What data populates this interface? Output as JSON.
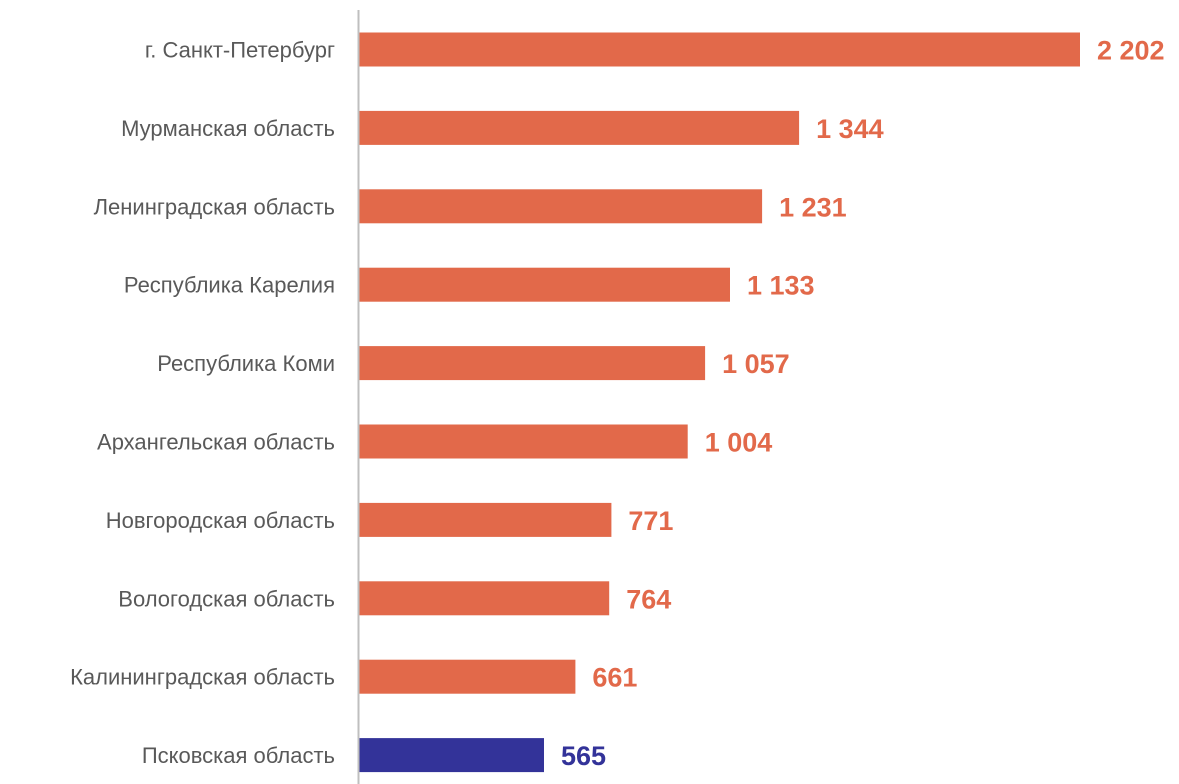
{
  "chart_data": {
    "type": "bar",
    "orientation": "horizontal",
    "title": "",
    "xlabel": "",
    "ylabel": "",
    "grid": false,
    "legend": "none",
    "categories": [
      "г. Санкт-Петербург",
      "Мурманская область",
      "Ленинградская область",
      "Республика Карелия",
      "Республика Коми",
      "Архангельская область",
      "Новгородская область",
      "Вологодская область",
      "Калининградская область",
      "Псковская область"
    ],
    "values": [
      2202,
      1344,
      1231,
      1133,
      1057,
      1004,
      771,
      764,
      661,
      565
    ],
    "value_labels": [
      "2 202",
      "1 344",
      "1 231",
      "1 133",
      "1 057",
      "1 004",
      "771",
      "764",
      "661",
      "565"
    ],
    "highlight_index": 9,
    "xlim": [
      0,
      2202
    ],
    "colors": {
      "bar": "#E2694A",
      "highlight": "#333399",
      "axis": "#BFBFBF",
      "category_text": "#595959"
    }
  }
}
